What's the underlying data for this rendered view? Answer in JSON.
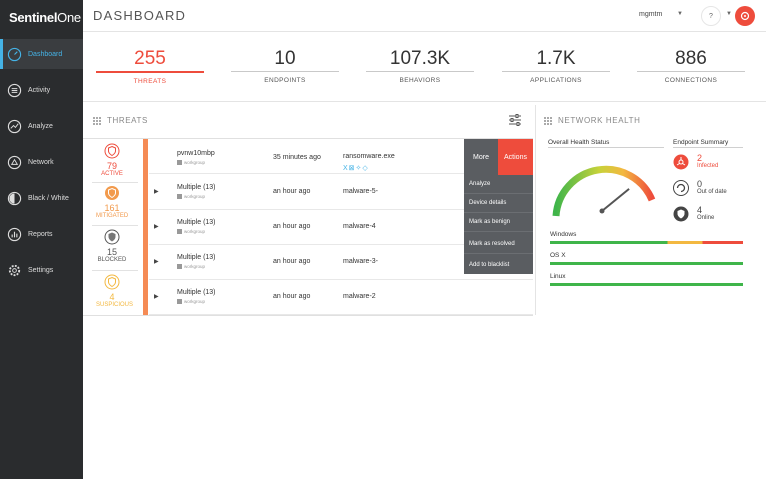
{
  "app": {
    "logo_bold": "Sentinel",
    "logo_light": "One"
  },
  "header": {
    "title": "DASHBOARD",
    "user": "mgmtm",
    "help": "?"
  },
  "sidebar": {
    "items": [
      {
        "label": "Dashboard",
        "icon": "dashboard-icon",
        "active": true
      },
      {
        "label": "Activity",
        "icon": "list-icon"
      },
      {
        "label": "Analyze",
        "icon": "analyze-icon"
      },
      {
        "label": "Network",
        "icon": "network-icon"
      },
      {
        "label": "Black / White",
        "icon": "contrast-icon"
      },
      {
        "label": "Reports",
        "icon": "reports-icon"
      },
      {
        "label": "Settings",
        "icon": "gear-icon"
      }
    ]
  },
  "stats": [
    {
      "value": "255",
      "label": "THREATS"
    },
    {
      "value": "10",
      "label": "ENDPOINTS"
    },
    {
      "value": "107.3K",
      "label": "BEHAVIORS"
    },
    {
      "value": "1.7K",
      "label": "APPLICATIONS"
    },
    {
      "value": "886",
      "label": "CONNECTIONS"
    }
  ],
  "threats": {
    "title": "THREATS",
    "categories": [
      {
        "count": "79",
        "label": "ACTIVE"
      },
      {
        "count": "161",
        "label": "MITIGATED"
      },
      {
        "count": "15",
        "label": "BLOCKED"
      },
      {
        "count": "4",
        "label": "SUSPICIOUS"
      }
    ],
    "rows": [
      {
        "endpoint": "pvnw10mbp",
        "group": "workgroup",
        "time": "35 minutes ago",
        "file": "ransomware.exe"
      },
      {
        "endpoint": "Multiple (13)",
        "group": "workgroup",
        "time": "an hour ago",
        "file": "malware-5-"
      },
      {
        "endpoint": "Multiple (13)",
        "group": "workgroup",
        "time": "an hour ago",
        "file": "malware-4"
      },
      {
        "endpoint": "Multiple (13)",
        "group": "workgroup",
        "time": "an hour ago",
        "file": "malware-3-"
      },
      {
        "endpoint": "Multiple (13)",
        "group": "workgroup",
        "time": "an hour ago",
        "file": "malware-2"
      }
    ],
    "file_icons": "X⊠✧◇",
    "menu": {
      "more": "More",
      "actions": "Actions",
      "items": [
        "Analyze",
        "Device details",
        "Mark as benign",
        "Mark as resolved",
        "Add to blacklist"
      ]
    }
  },
  "network_health": {
    "title": "NETWORK HEALTH",
    "overall_label": "Overall Health Status",
    "gauge_level": 0.85,
    "summary_label": "Endpoint Summary",
    "summary": [
      {
        "count": "2",
        "label": "Infected",
        "icon": "biohazard-icon"
      },
      {
        "count": "0",
        "label": "Out of date",
        "icon": "refresh-icon"
      },
      {
        "count": "4",
        "label": "Online",
        "icon": "shield-check-icon"
      }
    ],
    "os": [
      {
        "name": "Windows"
      },
      {
        "name": "OS X"
      },
      {
        "name": "Linux"
      }
    ]
  },
  "colors": {
    "accent": "#ee4c3c",
    "blue": "#45b3e6",
    "orange": "#f29a4c",
    "green": "#3fb54a",
    "yellow": "#f3b840"
  }
}
